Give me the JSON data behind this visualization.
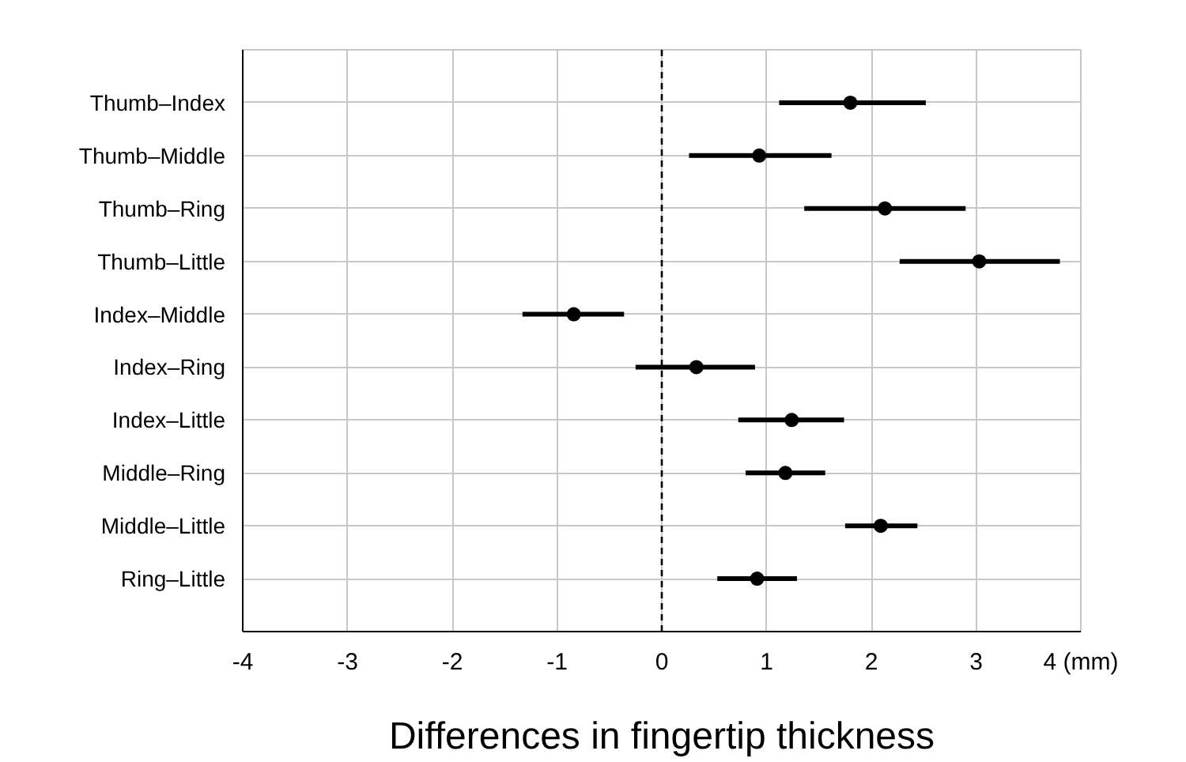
{
  "chart_data": {
    "type": "scatter",
    "orientation": "horizontal",
    "xlabel": "Differences in fingertip thickness",
    "categories": [
      "Thumb–Index",
      "Thumb–Middle",
      "Thumb–Ring",
      "Thumb–Little",
      "Index–Middle",
      "Index–Ring",
      "Index–Little",
      "Middle–Ring",
      "Middle–Little",
      "Ring–Little"
    ],
    "series": [
      {
        "color": "#000000",
        "values": [
          1.8,
          0.93,
          2.13,
          3.03,
          -0.84,
          0.33,
          1.24,
          1.18,
          2.09,
          0.91
        ],
        "errors": [
          [
            1.12,
            2.52
          ],
          [
            0.26,
            1.62
          ],
          [
            1.36,
            2.9
          ],
          [
            2.27,
            3.8
          ],
          [
            -1.33,
            -0.36
          ],
          [
            -0.25,
            0.89
          ],
          [
            0.73,
            1.74
          ],
          [
            0.8,
            1.56
          ],
          [
            1.75,
            2.44
          ],
          [
            0.53,
            1.29
          ]
        ]
      }
    ],
    "xlim": [
      -4,
      4
    ],
    "xticks": [
      -4,
      -3,
      -2,
      -1,
      0,
      1,
      2,
      3,
      {
        "value": 4,
        "label": "4 (mm)"
      }
    ],
    "ref_lines": [
      {
        "axis": "x",
        "value": 0,
        "color": "#000000",
        "line_style": "dashed"
      }
    ],
    "grid": true,
    "marker": "circle"
  }
}
